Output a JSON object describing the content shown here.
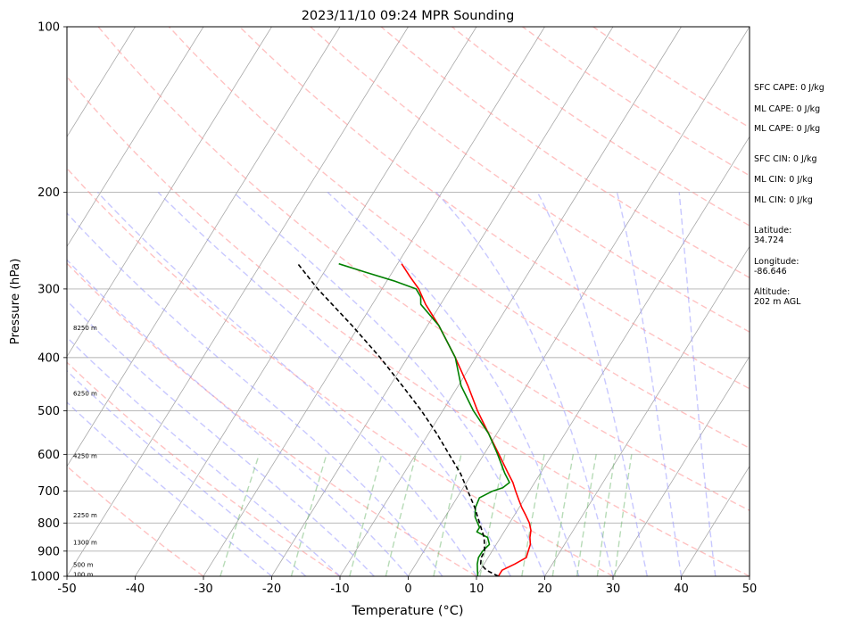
{
  "chart_data": {
    "type": "line",
    "title": "2023/11/10 09:24 MPR Sounding",
    "xlabel": "Temperature (°C)",
    "ylabel": "Pressure (hPa)",
    "xlim": [
      -50,
      50
    ],
    "ylim": [
      1000,
      100
    ],
    "y_scale": "log",
    "x_ticks": [
      -50,
      -40,
      -30,
      -20,
      -10,
      0,
      10,
      20,
      30,
      40,
      50
    ],
    "y_ticks": [
      1000,
      900,
      800,
      700,
      600,
      500,
      400,
      300,
      200,
      100
    ],
    "grid": "horizontal at pressure ticks",
    "skew": 50,
    "series": [
      {
        "role": "temperature",
        "color": "#ff0000",
        "style": "solid",
        "points": [
          [
            1000,
            13.2
          ],
          [
            975,
            13.2
          ],
          [
            950,
            14.5
          ],
          [
            925,
            15.6
          ],
          [
            900,
            15.3
          ],
          [
            875,
            15.0
          ],
          [
            850,
            14.3
          ],
          [
            825,
            13.8
          ],
          [
            800,
            12.9
          ],
          [
            775,
            11.7
          ],
          [
            750,
            10.4
          ],
          [
            725,
            9.2
          ],
          [
            700,
            8.0
          ],
          [
            675,
            6.8
          ],
          [
            650,
            5.3
          ],
          [
            600,
            2.2
          ],
          [
            550,
            -1.2
          ],
          [
            500,
            -4.9
          ],
          [
            450,
            -8.6
          ],
          [
            400,
            -13.0
          ],
          [
            350,
            -18.3
          ],
          [
            320,
            -22.2
          ],
          [
            300,
            -24.6
          ],
          [
            285,
            -27.0
          ],
          [
            270,
            -29.4
          ]
        ]
      },
      {
        "role": "dewpoint",
        "color": "#008000",
        "style": "solid",
        "points": [
          [
            1000,
            10.2
          ],
          [
            975,
            9.6
          ],
          [
            950,
            9.0
          ],
          [
            925,
            8.6
          ],
          [
            900,
            8.6
          ],
          [
            875,
            9.0
          ],
          [
            850,
            8.1
          ],
          [
            830,
            6.0
          ],
          [
            815,
            6.0
          ],
          [
            780,
            4.4
          ],
          [
            750,
            3.6
          ],
          [
            720,
            3.3
          ],
          [
            700,
            4.6
          ],
          [
            690,
            5.8
          ],
          [
            675,
            6.3
          ],
          [
            650,
            4.8
          ],
          [
            600,
            2.0
          ],
          [
            550,
            -1.2
          ],
          [
            500,
            -5.5
          ],
          [
            450,
            -9.6
          ],
          [
            400,
            -13.0
          ],
          [
            350,
            -18.3
          ],
          [
            320,
            -22.9
          ],
          [
            310,
            -23.6
          ],
          [
            300,
            -25.0
          ],
          [
            290,
            -29.0
          ],
          [
            280,
            -33.8
          ],
          [
            270,
            -38.6
          ]
        ]
      },
      {
        "role": "parcel",
        "color": "#000000",
        "style": "dashed",
        "points": [
          [
            1000,
            13.2
          ],
          [
            975,
            10.9
          ],
          [
            950,
            9.5
          ],
          [
            925,
            9.0
          ],
          [
            900,
            8.9
          ],
          [
            850,
            7.6
          ],
          [
            800,
            5.6
          ],
          [
            750,
            3.5
          ],
          [
            700,
            1.0
          ],
          [
            650,
            -1.7
          ],
          [
            600,
            -5.1
          ],
          [
            550,
            -8.8
          ],
          [
            500,
            -13.1
          ],
          [
            450,
            -18.2
          ],
          [
            400,
            -24.0
          ],
          [
            350,
            -31.0
          ],
          [
            300,
            -39.4
          ],
          [
            270,
            -44.6
          ]
        ]
      }
    ],
    "height_labels": [
      {
        "p": 995,
        "text": "100 m"
      },
      {
        "p": 955,
        "text": "500 m"
      },
      {
        "p": 870,
        "text": "1300 m"
      },
      {
        "p": 775,
        "text": "2250 m"
      },
      {
        "p": 605,
        "text": "4250 m"
      },
      {
        "p": 466,
        "text": "6250 m"
      },
      {
        "p": 354,
        "text": "8250 m"
      }
    ]
  },
  "side_panel": {
    "sfc_cape": "SFC CAPE: 0 J/kg",
    "ml_cape_1": "ML CAPE: 0 J/kg",
    "ml_cape_2": "ML CAPE: 0 J/kg",
    "sfc_cin": "SFC CIN: 0 J/kg",
    "ml_cin_1": "ML CIN: 0 J/kg",
    "ml_cin_2": "ML CIN: 0 J/kg",
    "latitude": "Latitude:\n34.724",
    "longitude": "Longitude:\n-86.646",
    "altitude": "Altitude:\n202 m AGL"
  }
}
